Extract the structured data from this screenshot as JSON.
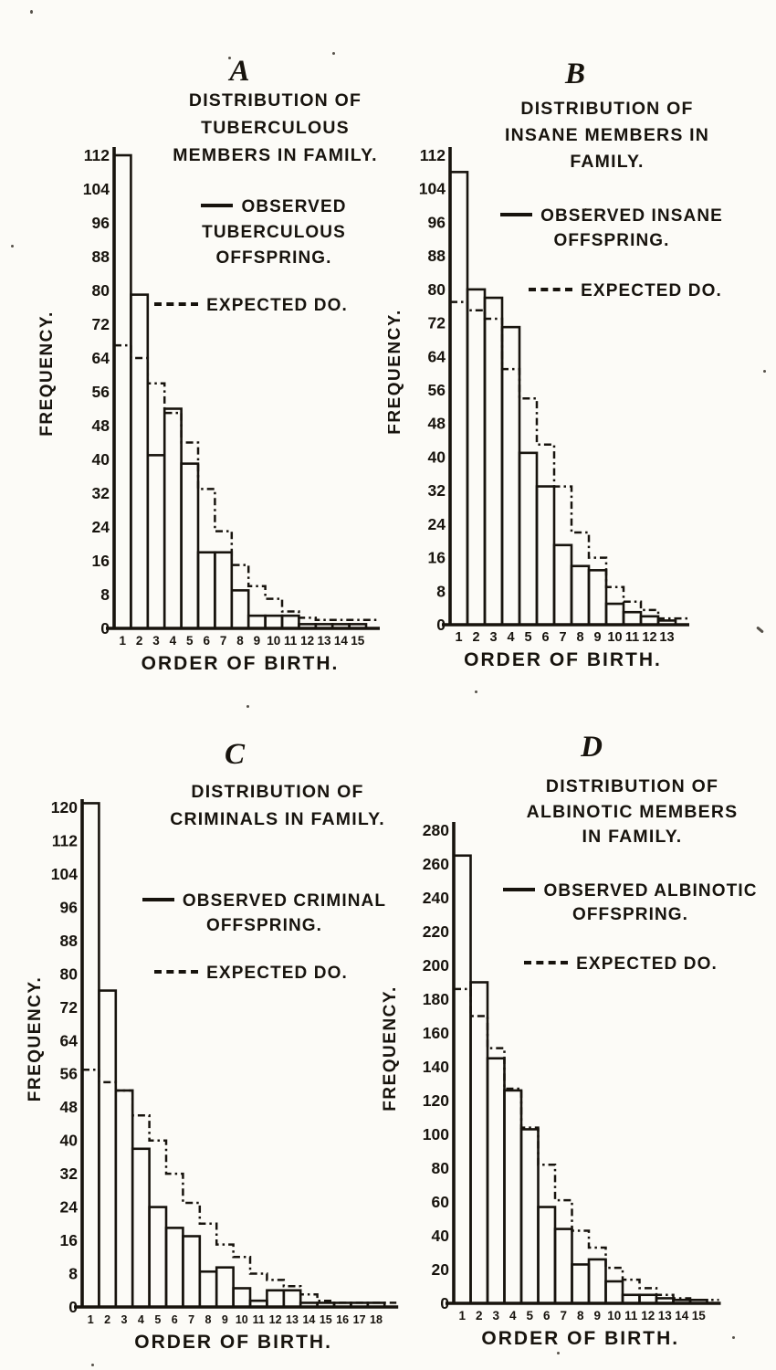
{
  "colors": {
    "ink": "#17130d",
    "paper": "#fcfbf7"
  },
  "chart_data": [
    {
      "type": "bar",
      "panel_letter": "A",
      "title_lines": [
        "DISTRIBUTION OF",
        "TUBERCULOUS",
        "MEMBERS IN FAMILY."
      ],
      "legend": {
        "observed_lines": [
          "OBSERVED",
          "TUBERCULOUS",
          "OFFSPRING."
        ],
        "expected_label": "EXPECTED DO."
      },
      "xlabel": "ORDER OF BIRTH.",
      "ylabel": "FREQUENCY.",
      "x_categories": [
        1,
        2,
        3,
        4,
        5,
        6,
        7,
        8,
        9,
        10,
        11,
        12,
        13,
        14,
        15
      ],
      "series": [
        {
          "name": "Observed tuberculous offspring",
          "style": "solid-bars",
          "values": [
            112,
            79,
            41,
            52,
            39,
            18,
            18,
            9,
            3,
            3,
            3,
            1,
            1,
            1,
            1
          ]
        },
        {
          "name": "Expected",
          "style": "dashed-steps",
          "values": [
            67,
            64,
            58,
            51,
            44,
            33,
            23,
            15,
            10,
            7,
            4,
            2.5,
            2,
            2,
            2
          ]
        }
      ],
      "ylim": [
        0,
        112
      ],
      "ytick_step": 8,
      "grid": false,
      "legend_position": "upper right"
    },
    {
      "type": "bar",
      "panel_letter": "B",
      "title_lines": [
        "DISTRIBUTION OF",
        "INSANE MEMBERS IN",
        "FAMILY."
      ],
      "legend": {
        "observed_lines": [
          "OBSERVED INSANE",
          "OFFSPRING."
        ],
        "expected_label": "EXPECTED DO."
      },
      "xlabel": "ORDER OF BIRTH.",
      "ylabel": "FREQUENCY.",
      "x_categories": [
        1,
        2,
        3,
        4,
        5,
        6,
        7,
        8,
        9,
        10,
        11,
        12,
        13
      ],
      "series": [
        {
          "name": "Observed insane offspring",
          "style": "solid-bars",
          "values": [
            108,
            80,
            78,
            71,
            41,
            33,
            19,
            14,
            13,
            5,
            3,
            2,
            1
          ]
        },
        {
          "name": "Expected",
          "style": "dashed-steps",
          "values": [
            77,
            75,
            73,
            61,
            54,
            43,
            33,
            22,
            16,
            9,
            5.5,
            3.5,
            1.5
          ]
        }
      ],
      "ylim": [
        0,
        112
      ],
      "ytick_step": 8,
      "grid": false,
      "legend_position": "upper right"
    },
    {
      "type": "bar",
      "panel_letter": "C",
      "title_lines": [
        "DISTRIBUTION OF",
        "CRIMINALS IN FAMILY."
      ],
      "legend": {
        "observed_lines": [
          "OBSERVED CRIMINAL",
          "OFFSPRING."
        ],
        "expected_label": "EXPECTED DO."
      },
      "xlabel": "ORDER OF BIRTH.",
      "ylabel": "FREQUENCY.",
      "x_categories": [
        1,
        2,
        3,
        4,
        5,
        6,
        7,
        8,
        9,
        10,
        11,
        12,
        13,
        14,
        15,
        16,
        17,
        18
      ],
      "series": [
        {
          "name": "Observed criminal offspring",
          "style": "solid-bars",
          "values": [
            121,
            76,
            52,
            38,
            24,
            19,
            17,
            8.5,
            9.5,
            4.5,
            1.5,
            4,
            4,
            1,
            1,
            1,
            1,
            1
          ]
        },
        {
          "name": "Expected",
          "style": "dashed-steps",
          "values": [
            57,
            54,
            52,
            46,
            40,
            32,
            25,
            20,
            15,
            12,
            8,
            6.5,
            5,
            3,
            1.5,
            1,
            1,
            1
          ]
        }
      ],
      "ylim": [
        0,
        120
      ],
      "ytick_step": 8,
      "grid": false,
      "legend_position": "upper right"
    },
    {
      "type": "bar",
      "panel_letter": "D",
      "title_lines": [
        "DISTRIBUTION OF",
        "ALBINOTIC MEMBERS",
        "IN FAMILY."
      ],
      "legend": {
        "observed_lines": [
          "OBSERVED ALBINOTIC",
          "OFFSPRING."
        ],
        "expected_label": "EXPECTED DO."
      },
      "xlabel": "ORDER OF BIRTH.",
      "ylabel": "FREQUENCY.",
      "x_categories": [
        1,
        2,
        3,
        4,
        5,
        6,
        7,
        8,
        9,
        10,
        11,
        12,
        13,
        14,
        15
      ],
      "series": [
        {
          "name": "Observed albinotic offspring",
          "style": "solid-bars",
          "values": [
            265,
            190,
            145,
            126,
            103,
            57,
            44,
            23,
            26,
            13,
            5,
            5,
            3,
            2,
            2
          ]
        },
        {
          "name": "Expected",
          "style": "dashed-steps",
          "values": [
            186,
            170,
            151,
            127,
            104,
            82,
            61,
            43,
            33,
            21,
            14,
            9,
            5,
            3,
            2
          ]
        }
      ],
      "ylim": [
        0,
        280
      ],
      "ytick_step": 20,
      "grid": false,
      "legend_position": "upper right"
    }
  ]
}
